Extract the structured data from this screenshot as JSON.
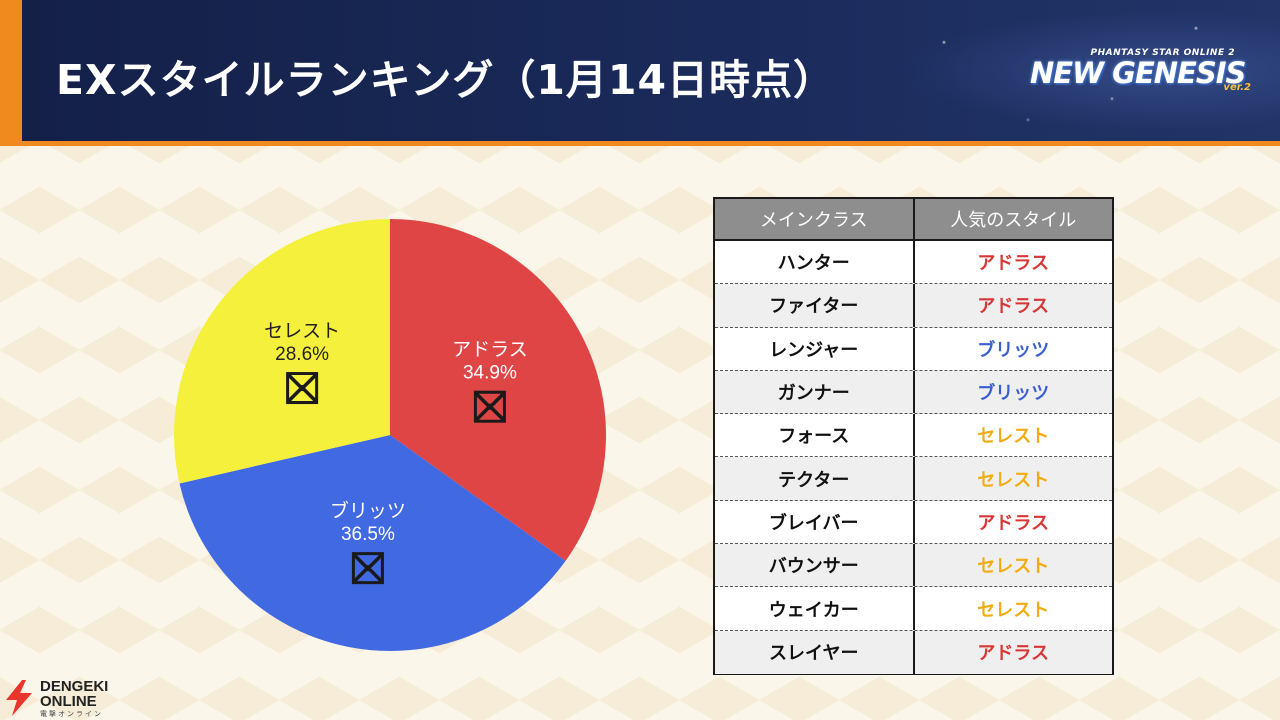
{
  "header": {
    "title": "EXスタイルランキング（1月14日時点）",
    "logo": {
      "small": "PHANTASY STAR ONLINE 2",
      "big": "NEW GENESIS",
      "ver": "ver.2"
    }
  },
  "chart_data": {
    "type": "pie",
    "title": "",
    "slices": [
      {
        "label": "アドラス",
        "value": 34.9,
        "display": "34.9%",
        "color": "#e04545"
      },
      {
        "label": "ブリッツ",
        "value": 36.5,
        "display": "36.5%",
        "color": "#4169e1"
      },
      {
        "label": "セレスト",
        "value": 28.6,
        "display": "28.6%",
        "color": "#f5f03c"
      }
    ]
  },
  "table": {
    "headers": [
      "メインクラス",
      "人気のスタイル"
    ],
    "rows": [
      {
        "cls": "ハンター",
        "style": "アドラス"
      },
      {
        "cls": "ファイター",
        "style": "アドラス"
      },
      {
        "cls": "レンジャー",
        "style": "ブリッツ"
      },
      {
        "cls": "ガンナー",
        "style": "ブリッツ"
      },
      {
        "cls": "フォース",
        "style": "セレスト"
      },
      {
        "cls": "テクター",
        "style": "セレスト"
      },
      {
        "cls": "ブレイバー",
        "style": "アドラス"
      },
      {
        "cls": "バウンサー",
        "style": "セレスト"
      },
      {
        "cls": "ウェイカー",
        "style": "セレスト"
      },
      {
        "cls": "スレイヤー",
        "style": "アドラス"
      }
    ],
    "style_colors": {
      "アドラス": "#d93636",
      "ブリッツ": "#3a5fd0",
      "セレスト": "#f0ac10"
    }
  },
  "watermark": {
    "line1": "DENGEKI",
    "line2": "ONLINE",
    "sub": "電撃オンライン"
  }
}
